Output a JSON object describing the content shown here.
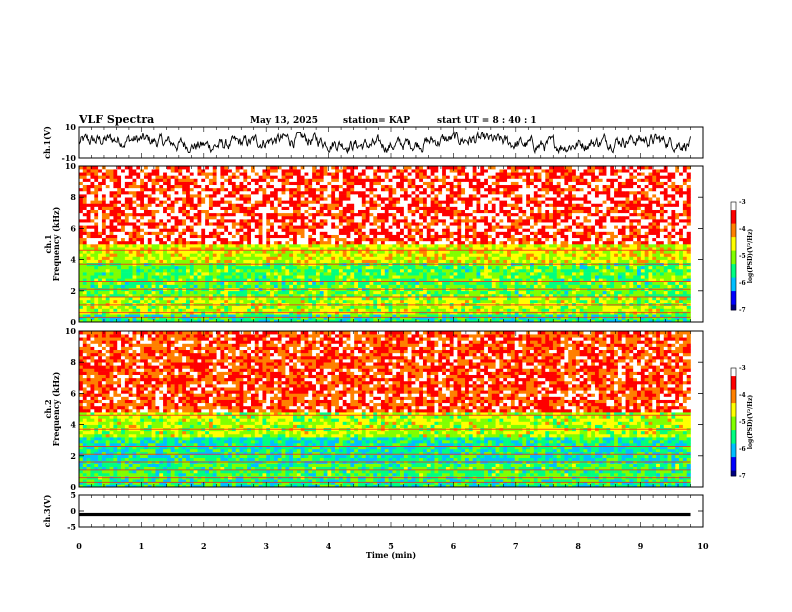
{
  "header": {
    "title": "VLF Spectra",
    "date": "May 13, 2025",
    "station": "station= KAP",
    "start": "start  UT =   8 : 40 : 1"
  },
  "colors": {
    "colormap": [
      "#000080",
      "#0000ff",
      "#00bfff",
      "#00ff80",
      "#80ff00",
      "#ffff00",
      "#ff8000",
      "#ff0000",
      "#ffffff"
    ]
  },
  "chart_data": [
    {
      "type": "line",
      "name": "ch1-waveform",
      "ylabel": "ch.1(V)",
      "ylim": [
        -10,
        10
      ],
      "y_ticks": [
        "10",
        "-10"
      ],
      "x_range_min": [
        0,
        9.8
      ],
      "description_values": "noisy waveform roughly between -6 and +6 V"
    },
    {
      "type": "heatmap",
      "name": "ch1-spectrogram",
      "ylabel": "ch.1\nFrequency (kHz)",
      "ylabel_top": "ch.1",
      "ylabel_bottom": "Frequency (kHz)",
      "ylim": [
        0,
        10
      ],
      "y_ticks": [
        "0",
        "2",
        "4",
        "6",
        "8",
        "10"
      ],
      "x_range_min": [
        0,
        9.8
      ],
      "bands_khz": [
        {
          "from": 0,
          "to": 0.5,
          "level": -5.5
        },
        {
          "from": 0.5,
          "to": 1.6,
          "level": -4.8
        },
        {
          "from": 1.6,
          "to": 3.8,
          "level": -5.2
        },
        {
          "from": 3.8,
          "to": 5.0,
          "level": -4.6
        },
        {
          "from": 5.0,
          "to": 10,
          "level": -3.4
        }
      ],
      "colorbar": {
        "label": "log(PSD)(V²/Hz)",
        "ticks": [
          "-3",
          "-4",
          "-5",
          "-6",
          "-7"
        ],
        "range": [
          -7,
          -3
        ]
      }
    },
    {
      "type": "heatmap",
      "name": "ch2-spectrogram",
      "ylabel_top": "ch.2",
      "ylabel_bottom": "Frequency (kHz)",
      "ylim": [
        0,
        10
      ],
      "y_ticks": [
        "0",
        "2",
        "4",
        "6",
        "8",
        "10"
      ],
      "x_range_min": [
        0,
        9.8
      ],
      "bands_khz": [
        {
          "from": 0,
          "to": 0.5,
          "level": -5.5
        },
        {
          "from": 0.5,
          "to": 1.5,
          "level": -5.3
        },
        {
          "from": 1.5,
          "to": 3.2,
          "level": -5.6
        },
        {
          "from": 3.2,
          "to": 4.8,
          "level": -4.8
        },
        {
          "from": 4.8,
          "to": 10,
          "level": -3.6
        }
      ],
      "colorbar": {
        "label": "log(PSD)(V²/Hz)",
        "ticks": [
          "-3",
          "-4",
          "-5",
          "-6",
          "-7"
        ],
        "range": [
          -7,
          -3
        ]
      }
    },
    {
      "type": "line",
      "name": "ch3-waveform",
      "ylabel": "ch.3(V)",
      "ylim": [
        -5,
        5
      ],
      "y_ticks": [
        "5",
        "0",
        "-5"
      ],
      "x_range_min": [
        0,
        9.8
      ],
      "description_values": "thick flat band near -1 V"
    }
  ],
  "x_axis": {
    "label": "Time (min)",
    "ticks": [
      "0",
      "1",
      "2",
      "3",
      "4",
      "5",
      "6",
      "7",
      "8",
      "9",
      "10"
    ],
    "range": [
      0,
      10
    ]
  }
}
